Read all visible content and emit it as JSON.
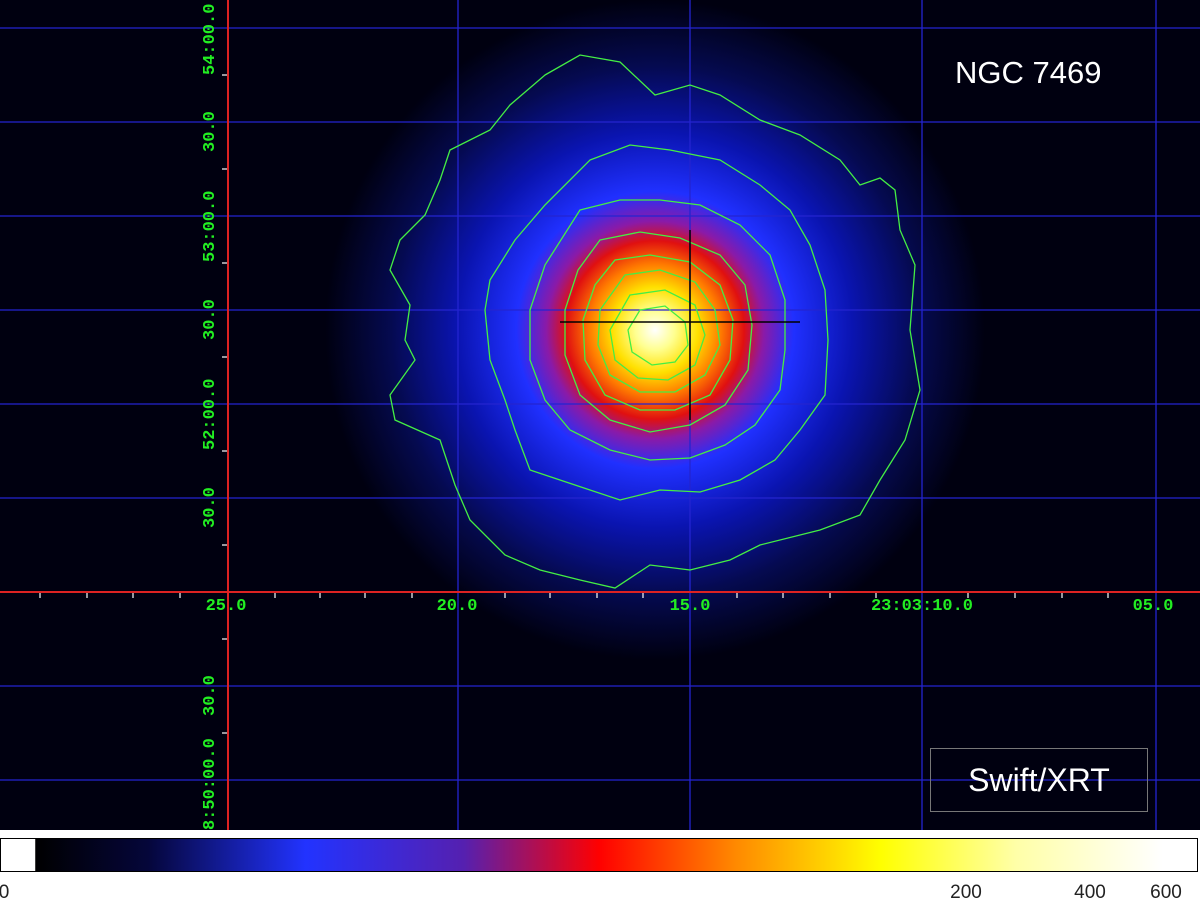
{
  "image": {
    "target_label": "NGC 7469",
    "instrument_label": "Swift/XRT",
    "colormap": "heat (black-blue-red-yellow-white)",
    "contour_color": "#44ee44",
    "grid_color": "#2222cc",
    "axis_color": "#dd2222",
    "ra_axis": {
      "tick_labels": [
        "25.0",
        "20.0",
        "15.0",
        "23:03:10.0",
        "05.0"
      ]
    },
    "dec_axis": {
      "tick_labels": [
        "54:00.0",
        "30.0",
        "53:00.0",
        "30.0",
        "52:00.0",
        "30.0",
        "30.0",
        "8:50:00.0"
      ]
    },
    "colorbar": {
      "labels": [
        "0",
        "200",
        "400",
        "600"
      ],
      "scale": "log"
    }
  }
}
